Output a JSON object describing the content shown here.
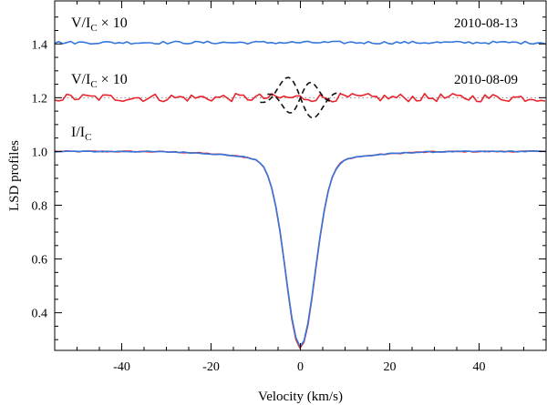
{
  "chart_data": {
    "type": "line",
    "xlabel": "Velocity (km/s)",
    "ylabel": "LSD profiles",
    "xlim": [
      -55,
      55
    ],
    "ylim": [
      0.26,
      1.56
    ],
    "x_ticks": [
      -40,
      -20,
      0,
      20,
      40
    ],
    "x_tick_labels": [
      "-40",
      "-20",
      "0",
      "20",
      "40"
    ],
    "y_ticks": [
      0.4,
      0.6,
      0.8,
      1.0,
      1.2,
      1.4
    ],
    "y_tick_labels": [
      "0.4",
      "0.6",
      "0.8",
      "1.0",
      "1.2",
      "1.4"
    ],
    "annotations": {
      "stokes_v_top": {
        "label": "V/I",
        "sub": "C",
        "suffix": " × 10",
        "date": "2010-08-13"
      },
      "stokes_v_mid": {
        "label": "V/I",
        "sub": "C",
        "suffix": " × 10",
        "date": "2010-08-09"
      },
      "intensity": {
        "label": "I/I",
        "sub": "C"
      }
    },
    "reference_lines": [
      {
        "name": "zero-level V (2010-08-09)",
        "y": 1.2,
        "style": "dotted",
        "color": "#888888"
      }
    ],
    "series": [
      {
        "name": "I/Ic 2010-08-09",
        "color": "#e8242c",
        "kind": "intensity",
        "continuum": 1.0,
        "depth": 0.695,
        "center": 0.0,
        "sigma": 3.3,
        "wing_depth": 0.035,
        "wing_sigma": 12,
        "noise": 0.002
      },
      {
        "name": "I/Ic 2010-08-13",
        "color": "#3377dd",
        "kind": "intensity",
        "continuum": 1.0,
        "depth": 0.69,
        "center": 0.0,
        "sigma": 3.3,
        "wing_depth": 0.035,
        "wing_sigma": 12,
        "noise": 0.002
      },
      {
        "name": "V/Ic x10 2010-08-09",
        "color": "#e8242c",
        "kind": "stokes_v",
        "offset": 1.2,
        "noise": 0.012
      },
      {
        "name": "V/Ic x10 2010-08-13",
        "color": "#3377dd",
        "kind": "stokes_v",
        "offset": 1.405,
        "noise": 0.004
      },
      {
        "name": "model V signal",
        "color": "#111111",
        "kind": "model_v",
        "offset": 1.2,
        "amplitude": 0.09,
        "center": 0.0,
        "sigma": 3.3,
        "style": "dashed"
      }
    ],
    "velocity_range": [
      -55,
      55
    ],
    "velocity_step": 0.9
  }
}
